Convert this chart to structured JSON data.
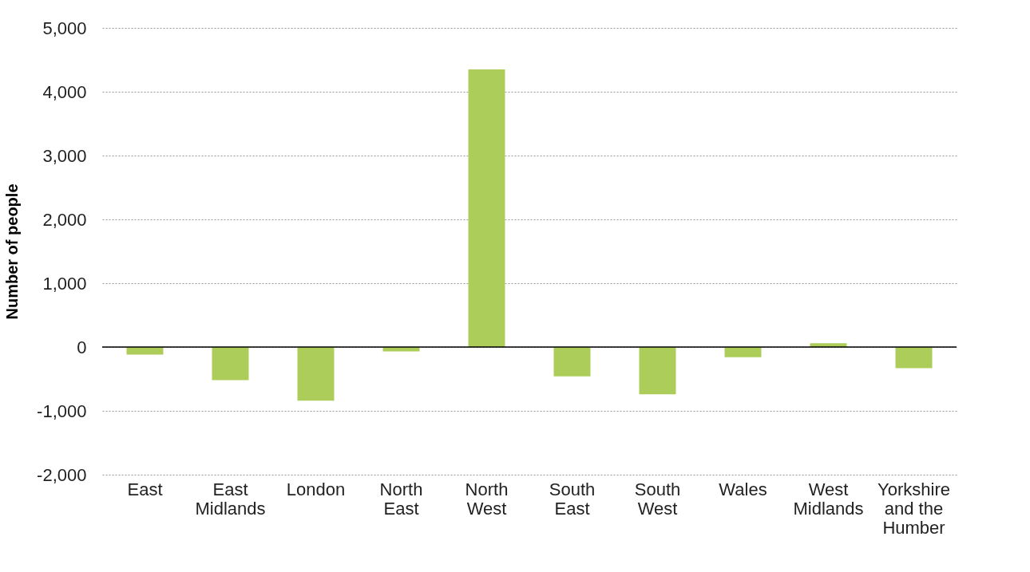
{
  "chart_data": {
    "type": "bar",
    "ylabel": "Number of people",
    "categories": [
      "East",
      "East Midlands",
      "London",
      "North East",
      "North West",
      "South East",
      "South West",
      "Wales",
      "West Midlands",
      "Yorkshire and the Humber"
    ],
    "values": [
      -120,
      -520,
      -840,
      -70,
      4350,
      -460,
      -740,
      -160,
      60,
      -330
    ],
    "color": "#adcd5a",
    "ylim": [
      -2000,
      5000
    ],
    "yticks": [
      {
        "value": -2000,
        "label": "-2,000"
      },
      {
        "value": -1000,
        "label": "-1,000"
      },
      0,
      {
        "value": 1000,
        "label": "1,000"
      },
      {
        "value": 2000,
        "label": "2,000"
      },
      {
        "value": 3000,
        "label": "3,000"
      },
      {
        "value": 4000,
        "label": "4,000"
      },
      {
        "value": 5000,
        "label": "5,000"
      }
    ],
    "grid": "y"
  }
}
